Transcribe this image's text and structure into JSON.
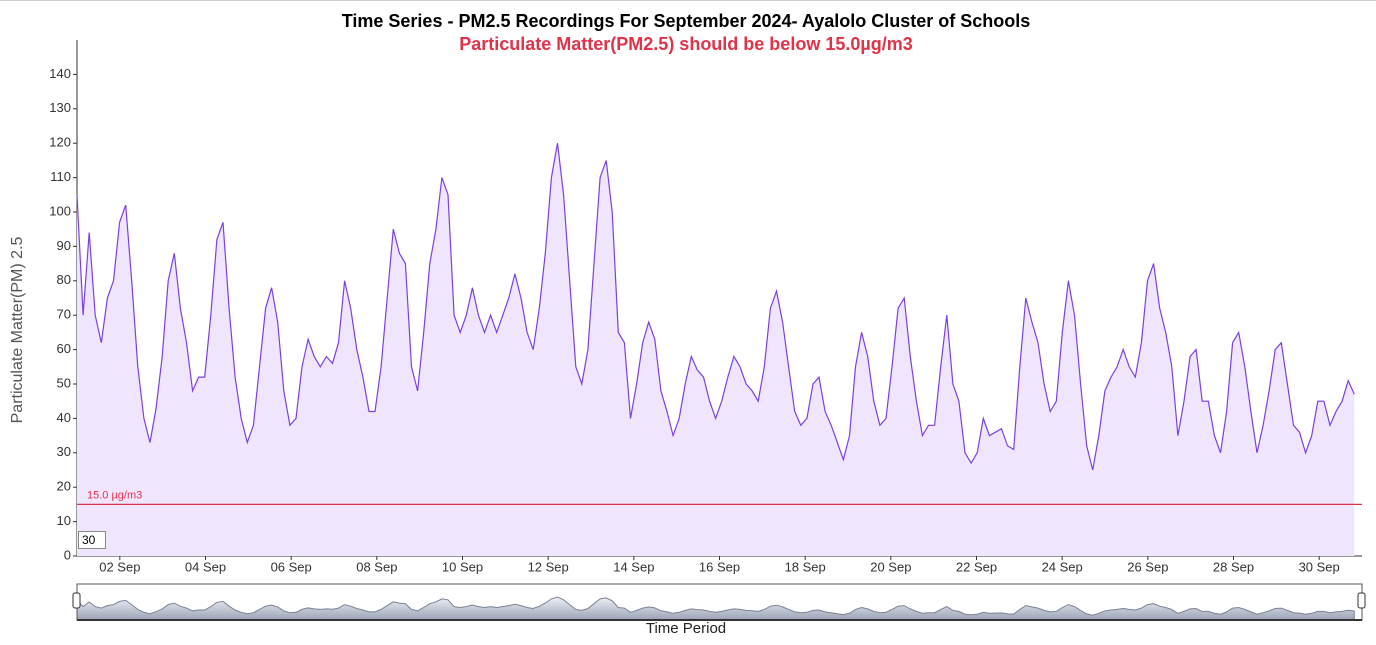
{
  "chart_data": {
    "type": "line",
    "title": "Time Series - PM2.5 Recordings For September 2024- Ayalolo Cluster of Schools",
    "subtitle": "Particulate Matter(PM2.5) should be below 15.0µg/m3",
    "y_label": "Particulate Matter(PM) 2.5",
    "x_label": "Time Period",
    "threshold": 15,
    "threshold_label": "15.0 µg/m3",
    "rolling_period": 30,
    "color": "#7b3fe4",
    "fill": "#efe6fd",
    "threshold_color": "#e0334a",
    "xlim": [
      1,
      31
    ],
    "ylim": [
      0,
      150
    ],
    "yticks": [
      0,
      10,
      20,
      30,
      40,
      50,
      60,
      70,
      80,
      90,
      100,
      110,
      120,
      130,
      140
    ],
    "xticks": [
      {
        "value": 2,
        "label": "02 Sep"
      },
      {
        "value": 4,
        "label": "04 Sep"
      },
      {
        "value": 6,
        "label": "06 Sep"
      },
      {
        "value": 8,
        "label": "08 Sep"
      },
      {
        "value": 10,
        "label": "10 Sep"
      },
      {
        "value": 12,
        "label": "12 Sep"
      },
      {
        "value": 14,
        "label": "14 Sep"
      },
      {
        "value": 16,
        "label": "16 Sep"
      },
      {
        "value": 18,
        "label": "18 Sep"
      },
      {
        "value": 20,
        "label": "20 Sep"
      },
      {
        "value": 22,
        "label": "22 Sep"
      },
      {
        "value": 24,
        "label": "24 Sep"
      },
      {
        "value": 26,
        "label": "26 Sep"
      },
      {
        "value": 28,
        "label": "28 Sep"
      },
      {
        "value": 30,
        "label": "30 Sep"
      }
    ],
    "x": [
      1,
      1.142,
      1.284,
      1.426,
      1.568,
      1.71,
      1.852,
      1.994,
      2.136,
      2.278,
      2.42,
      2.562,
      2.704,
      2.846,
      2.988,
      3.13,
      3.272,
      3.414,
      3.556,
      3.698,
      3.84,
      3.982,
      4.124,
      4.266,
      4.408,
      4.55,
      4.692,
      4.834,
      4.976,
      5.118,
      5.26,
      5.402,
      5.544,
      5.686,
      5.828,
      5.97,
      6.112,
      6.254,
      6.396,
      6.538,
      6.68,
      6.822,
      6.964,
      7.106,
      7.248,
      7.39,
      7.532,
      7.674,
      7.816,
      7.958,
      8.1,
      8.242,
      8.384,
      8.526,
      8.668,
      8.81,
      8.952,
      9.094,
      9.236,
      9.378,
      9.52,
      9.662,
      9.804,
      9.946,
      10.088,
      10.23,
      10.372,
      10.514,
      10.656,
      10.798,
      10.94,
      11.082,
      11.224,
      11.366,
      11.508,
      11.65,
      11.792,
      11.934,
      12.076,
      12.218,
      12.36,
      12.502,
      12.644,
      12.786,
      12.928,
      13.07,
      13.212,
      13.354,
      13.496,
      13.638,
      13.78,
      13.922,
      14.064,
      14.206,
      14.348,
      14.49,
      14.632,
      14.774,
      14.916,
      15.058,
      15.2,
      15.342,
      15.484,
      15.626,
      15.768,
      15.91,
      16.052,
      16.194,
      16.336,
      16.478,
      16.62,
      16.762,
      16.904,
      17.046,
      17.188,
      17.33,
      17.472,
      17.614,
      17.756,
      17.898,
      18.04,
      18.182,
      18.324,
      18.466,
      18.608,
      18.75,
      18.892,
      19.034,
      19.176,
      19.318,
      19.46,
      19.602,
      19.744,
      19.886,
      20.028,
      20.17,
      20.312,
      20.454,
      20.596,
      20.738,
      20.88,
      21.022,
      21.164,
      21.306,
      21.448,
      21.59,
      21.732,
      21.874,
      22.016,
      22.158,
      22.3,
      22.442,
      22.584,
      22.726,
      22.868,
      23.01,
      23.152,
      23.294,
      23.436,
      23.578,
      23.72,
      23.862,
      24.004,
      24.146,
      24.288,
      24.43,
      24.572,
      24.714,
      24.856,
      24.998,
      25.14,
      25.282,
      25.424,
      25.566,
      25.708,
      25.85,
      25.992,
      26.134,
      26.276,
      26.418,
      26.56,
      26.702,
      26.844,
      26.986,
      27.128,
      27.27,
      27.412,
      27.554,
      27.696,
      27.838,
      27.98,
      28.122,
      28.264,
      28.406,
      28.548,
      28.69,
      28.832,
      28.974,
      29.116,
      29.258,
      29.4,
      29.542,
      29.684,
      29.826,
      29.968,
      30.11,
      30.252,
      30.394,
      30.536,
      30.678,
      30.82
    ],
    "values": [
      105,
      70,
      94,
      70,
      62,
      75,
      80,
      97,
      102,
      80,
      55,
      40,
      33,
      43,
      58,
      80,
      88,
      72,
      62,
      48,
      52,
      52,
      70,
      92,
      97,
      72,
      52,
      40,
      33,
      38,
      55,
      72,
      78,
      68,
      48,
      38,
      40,
      55,
      63,
      58,
      55,
      58,
      56,
      62,
      80,
      72,
      60,
      52,
      42,
      42,
      55,
      75,
      95,
      88,
      85,
      55,
      48,
      65,
      85,
      95,
      110,
      105,
      70,
      65,
      70,
      78,
      70,
      65,
      70,
      65,
      70,
      75,
      82,
      75,
      65,
      60,
      72,
      88,
      110,
      120,
      105,
      80,
      55,
      50,
      60,
      85,
      110,
      115,
      100,
      65,
      62,
      40,
      50,
      62,
      68,
      63,
      48,
      42,
      35,
      40,
      50,
      58,
      54,
      52,
      45,
      40,
      45,
      52,
      58,
      55,
      50,
      48,
      45,
      55,
      72,
      77,
      68,
      55,
      42,
      38,
      40,
      50,
      52,
      42,
      38,
      33,
      28,
      35,
      55,
      65,
      58,
      45,
      38,
      40,
      55,
      72,
      75,
      58,
      45,
      35,
      38,
      38,
      55,
      70,
      50,
      45,
      30,
      27,
      30,
      40,
      35,
      36,
      37,
      32,
      31,
      55,
      75,
      68,
      62,
      50,
      42,
      45,
      65,
      80,
      70,
      50,
      32,
      25,
      35,
      48,
      52,
      55,
      60,
      55,
      52,
      62,
      80,
      85,
      72,
      65,
      55,
      35,
      45,
      58,
      60,
      45,
      45,
      35,
      30,
      42,
      62,
      65,
      55,
      42,
      30,
      38,
      48,
      60,
      62,
      50,
      38,
      36,
      30,
      35,
      45,
      45,
      38,
      42,
      45,
      51,
      47
    ]
  }
}
